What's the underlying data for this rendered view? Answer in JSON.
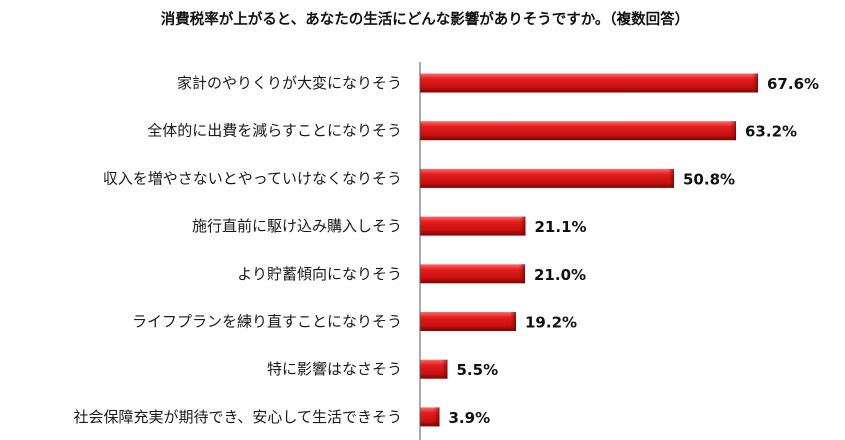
{
  "chart_data": {
    "type": "bar",
    "orientation": "horizontal",
    "title": "消費税率が上がると、あなたの生活にどんな影響がありそうですか。（複数回答）",
    "categories": [
      "家計のやりくりが大変になりそう",
      "全体的に出費を減らすことになりそう",
      "収入を増やさないとやっていけなくなりそう",
      "施行直前に駆け込み購入しそう",
      "より貯蓄傾向になりそう",
      "ライフプランを練り直すことになりそう",
      "特に影響はなさそう",
      "社会保障充実が期待でき、安心して生活できそう"
    ],
    "values": [
      67.6,
      63.2,
      50.8,
      21.1,
      21.0,
      19.2,
      5.5,
      3.9
    ],
    "value_labels": [
      "67.6%",
      "63.2%",
      "50.8%",
      "21.1%",
      "21.0%",
      "19.2%",
      "5.5%",
      "3.9%"
    ],
    "xlim": [
      0,
      67.6
    ],
    "grid": false,
    "legend": "none",
    "bar_color": "#cc1010"
  }
}
